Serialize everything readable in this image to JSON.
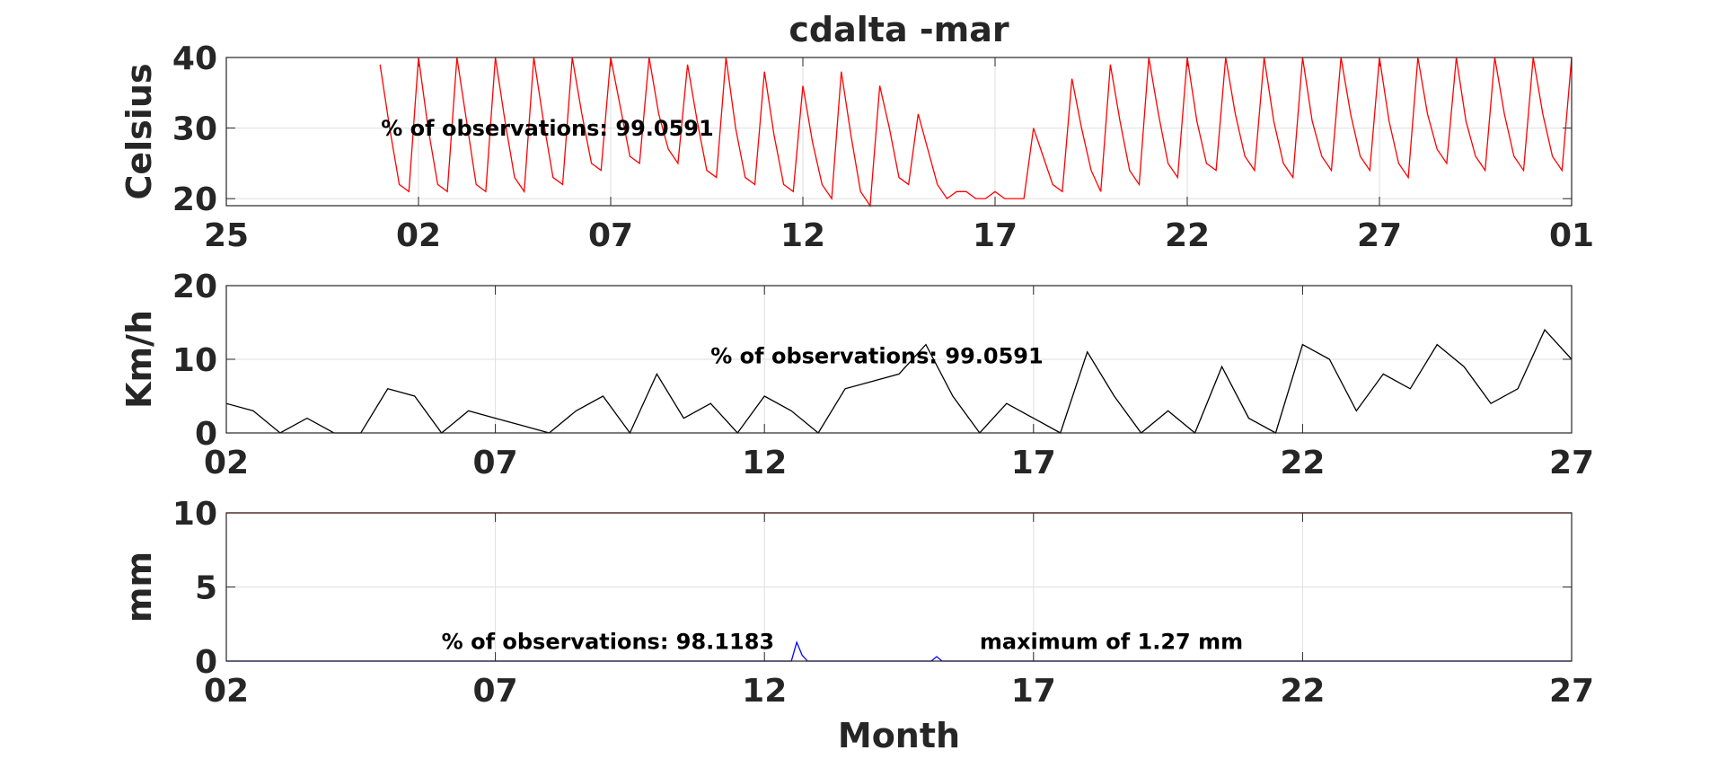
{
  "chart_data": [
    {
      "type": "line",
      "title": "cdalta -mar",
      "ylabel": "Celsius",
      "grid": true,
      "annotations": [
        "% of observations: 99.0591"
      ],
      "xlim": [
        0,
        35
      ],
      "ylim": [
        19,
        40
      ],
      "yticks": [
        20,
        30,
        40
      ],
      "xticks": [
        {
          "value": 0,
          "label": "25"
        },
        {
          "value": 5,
          "label": "02"
        },
        {
          "value": 10,
          "label": "07"
        },
        {
          "value": 15,
          "label": "12"
        },
        {
          "value": 20,
          "label": "17"
        },
        {
          "value": 25,
          "label": "22"
        },
        {
          "value": 30,
          "label": "27"
        },
        {
          "value": 35,
          "label": "01"
        }
      ],
      "x": [
        4,
        4.25,
        4.5,
        4.75,
        5,
        5.25,
        5.5,
        5.75,
        6,
        6.25,
        6.5,
        6.75,
        7,
        7.25,
        7.5,
        7.75,
        8,
        8.25,
        8.5,
        8.75,
        9,
        9.25,
        9.5,
        9.75,
        10,
        10.25,
        10.5,
        10.75,
        11,
        11.25,
        11.5,
        11.75,
        12,
        12.25,
        12.5,
        12.75,
        13,
        13.25,
        13.5,
        13.75,
        14,
        14.25,
        14.5,
        14.75,
        15,
        15.25,
        15.5,
        15.75,
        16,
        16.25,
        16.5,
        16.75,
        17,
        17.25,
        17.5,
        17.75,
        18,
        18.25,
        18.5,
        18.75,
        19,
        19.25,
        19.5,
        19.75,
        20,
        20.25,
        20.5,
        20.75,
        21,
        21.25,
        21.5,
        21.75,
        22,
        22.25,
        22.5,
        22.75,
        23,
        23.25,
        23.5,
        23.75,
        24,
        24.25,
        24.5,
        24.75,
        25,
        25.25,
        25.5,
        25.75,
        26,
        26.25,
        26.5,
        26.75,
        27,
        27.25,
        27.5,
        27.75,
        28,
        28.25,
        28.5,
        28.75,
        29,
        29.25,
        29.5,
        29.75,
        30,
        30.25,
        30.5,
        30.75,
        31,
        31.25,
        31.5,
        31.75,
        32,
        32.25,
        32.5,
        32.75,
        33,
        33.25,
        33.5,
        33.75,
        34,
        34.25,
        34.5,
        34.75,
        35
      ],
      "series": [
        {
          "color": "#ff0000",
          "values": [
            39,
            30,
            22,
            21,
            40,
            30,
            22,
            21,
            40,
            31,
            22,
            21,
            40,
            31,
            23,
            21,
            40,
            31,
            23,
            22,
            40,
            32,
            25,
            24,
            40,
            33,
            26,
            25,
            40,
            32,
            27,
            25,
            39,
            31,
            24,
            23,
            40,
            30,
            23,
            22,
            38,
            29,
            22,
            21,
            36,
            28,
            22,
            20,
            38,
            29,
            21,
            19,
            36,
            30,
            23,
            22,
            32,
            27,
            22,
            20,
            21,
            21,
            20,
            20,
            21,
            20,
            20,
            20,
            30,
            26,
            22,
            21,
            37,
            30,
            24,
            21,
            39,
            31,
            24,
            22,
            40,
            32,
            25,
            23,
            40,
            31,
            25,
            24,
            40,
            32,
            26,
            24,
            40,
            31,
            25,
            23,
            40,
            31,
            26,
            24,
            40,
            32,
            26,
            24,
            40,
            31,
            25,
            23,
            40,
            32,
            27,
            25,
            40,
            31,
            26,
            24,
            40,
            32,
            26,
            24,
            40,
            32,
            26,
            24,
            40
          ]
        }
      ]
    },
    {
      "type": "line",
      "ylabel": "Km/h",
      "grid": true,
      "annotations": [
        "% of observations: 99.0591"
      ],
      "xlim": [
        0,
        25
      ],
      "ylim": [
        0,
        20
      ],
      "yticks": [
        0,
        10,
        20
      ],
      "xticks": [
        {
          "value": 0,
          "label": "02"
        },
        {
          "value": 5,
          "label": "07"
        },
        {
          "value": 10,
          "label": "12"
        },
        {
          "value": 15,
          "label": "17"
        },
        {
          "value": 20,
          "label": "22"
        },
        {
          "value": 25,
          "label": "27"
        }
      ],
      "x": [
        0,
        0.5,
        1,
        1.5,
        2,
        2.5,
        3,
        3.5,
        4,
        4.5,
        5,
        5.5,
        6,
        6.5,
        7,
        7.5,
        8,
        8.5,
        9,
        9.5,
        10,
        10.5,
        11,
        11.5,
        12,
        12.5,
        13,
        13.5,
        14,
        14.5,
        15,
        15.5,
        16,
        16.5,
        17,
        17.5,
        18,
        18.5,
        19,
        19.5,
        20,
        20.5,
        21,
        21.5,
        22,
        22.5,
        23,
        23.5,
        24,
        24.5,
        25
      ],
      "series": [
        {
          "color": "#000000",
          "values": [
            4,
            3,
            0,
            2,
            0,
            0,
            6,
            5,
            0,
            3,
            2,
            1,
            0,
            3,
            5,
            0,
            8,
            2,
            4,
            0,
            5,
            3,
            0,
            6,
            7,
            8,
            12,
            5,
            0,
            4,
            2,
            0,
            11,
            5,
            0,
            3,
            0,
            9,
            2,
            0,
            12,
            10,
            3,
            8,
            6,
            12,
            9,
            4,
            6,
            14,
            10
          ]
        }
      ]
    },
    {
      "type": "line",
      "ylabel": "mm",
      "xlabel": "Month",
      "grid": true,
      "annotations": [
        "% of observations: 98.1183",
        "maximum of 1.27 mm"
      ],
      "xlim": [
        0,
        25
      ],
      "ylim": [
        0,
        10
      ],
      "yticks": [
        0,
        5,
        10
      ],
      "xticks": [
        {
          "value": 0,
          "label": "02"
        },
        {
          "value": 5,
          "label": "07"
        },
        {
          "value": 10,
          "label": "12"
        },
        {
          "value": 15,
          "label": "17"
        },
        {
          "value": 20,
          "label": "22"
        },
        {
          "value": 25,
          "label": "27"
        }
      ],
      "series": [
        {
          "color": "#ff0000",
          "x": [
            0,
            25
          ],
          "values": [
            10,
            10
          ]
        },
        {
          "color": "#0000ff",
          "x": [
            0,
            10.5,
            10.6,
            10.7,
            10.8,
            13.1,
            13.2,
            13.3,
            25
          ],
          "values": [
            0,
            0,
            1.27,
            0.4,
            0,
            0,
            0.3,
            0,
            0
          ]
        }
      ]
    }
  ]
}
